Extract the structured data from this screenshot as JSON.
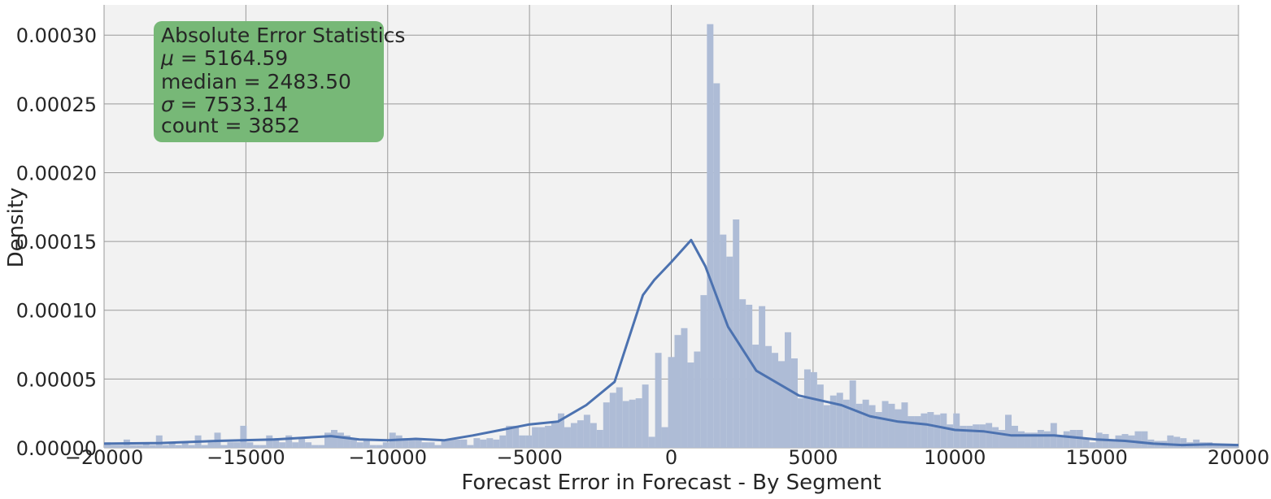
{
  "chart_data": {
    "type": "bar",
    "xlabel": "Forecast Error in Forecast - By Segment",
    "ylabel": "Density",
    "xlim": [
      -20000,
      20000
    ],
    "ylim": [
      0,
      0.000322
    ],
    "grid": true,
    "x_ticks": [
      -20000,
      -15000,
      -10000,
      -5000,
      0,
      5000,
      10000,
      15000,
      20000
    ],
    "x_tick_labels": [
      "−20000",
      "−15000",
      "−10000",
      "−5000",
      "0",
      "5000",
      "10000",
      "15000",
      "20000"
    ],
    "y_ticks": [
      0,
      5e-05,
      0.0001,
      0.00015,
      0.0002,
      0.00025,
      0.0003
    ],
    "y_tick_labels": [
      "0.00000",
      "0.00005",
      "0.00010",
      "0.00015",
      "0.00020",
      "0.00025",
      "0.00030"
    ],
    "colors": {
      "bars": "#aebcd6",
      "kde": "#4c72b0",
      "plot_bg": "#f2f2f2",
      "grid": "#9a9a9a",
      "stats_box": "#77b877"
    },
    "histogram": {
      "bin_width": 228.6,
      "bin_starts": [
        -20000,
        -19771,
        -19543,
        -19314,
        -19086,
        -18857,
        -18629,
        -18400,
        -18171,
        -17943,
        -17714,
        -17486,
        -17257,
        -17029,
        -16800,
        -16571,
        -16343,
        -16114,
        -15886,
        -15657,
        -15429,
        -15200,
        -14971,
        -14743,
        -14514,
        -14286,
        -14057,
        -13829,
        -13600,
        -13371,
        -13143,
        -12914,
        -12686,
        -12457,
        -12229,
        -12000,
        -11771,
        -11543,
        -11314,
        -11086,
        -10857,
        -10629,
        -10400,
        -10171,
        -9943,
        -9714,
        -9486,
        -9257,
        -9029,
        -8800,
        -8571,
        -8343,
        -8114,
        -7886,
        -7657,
        -7429,
        -7200,
        -6971,
        -6743,
        -6514,
        -6286,
        -6057,
        -5829,
        -5600,
        -5371,
        -5143,
        -4914,
        -4686,
        -4457,
        -4229,
        -4000,
        -3771,
        -3543,
        -3314,
        -3086,
        -2857,
        -2629,
        -2400,
        -2171,
        -1943,
        -1714,
        -1486,
        -1257,
        -1029,
        -800,
        -571,
        -343,
        -114,
        114,
        343,
        571,
        800,
        1029,
        1257,
        1486,
        1714,
        1943,
        2171,
        2400,
        2629,
        2857,
        3086,
        3314,
        3543,
        3771,
        4000,
        4229,
        4457,
        4686,
        4914,
        5143,
        5371,
        5600,
        5829,
        6057,
        6286,
        6514,
        6743,
        6971,
        7200,
        7429,
        7657,
        7886,
        8114,
        8343,
        8571,
        8800,
        9029,
        9257,
        9486,
        9714,
        9943,
        10171,
        10400,
        10629,
        10857,
        11086,
        11314,
        11543,
        11771,
        12000,
        12229,
        12457,
        12686,
        12914,
        13143,
        13371,
        13600,
        13829,
        14057,
        14286,
        14514,
        14743,
        14971,
        15200,
        15429,
        15657,
        15886,
        16114,
        16343,
        16571,
        16800,
        17029,
        17257,
        17486,
        17714,
        17943,
        18171,
        18400,
        18629,
        18857,
        19086,
        19314,
        19543,
        19771
      ],
      "values": [
        4e-06,
        2e-06,
        2e-06,
        6e-06,
        2e-06,
        2e-06,
        4e-06,
        2e-06,
        9e-06,
        2e-06,
        4e-06,
        2e-06,
        4e-06,
        2e-06,
        9e-06,
        2e-06,
        4e-06,
        1.1e-05,
        2e-06,
        4e-06,
        4e-06,
        1.6e-05,
        4e-06,
        2e-06,
        2e-06,
        9e-06,
        7e-06,
        4e-06,
        9e-06,
        4e-06,
        7e-06,
        4e-06,
        2e-06,
        2e-06,
        1.1e-05,
        1.3e-05,
        1.1e-05,
        9e-06,
        7e-06,
        4e-06,
        6e-06,
        2e-06,
        2e-06,
        4e-06,
        1.1e-05,
        9e-06,
        7e-06,
        6e-06,
        7e-06,
        4e-06,
        4e-06,
        2e-06,
        6e-06,
        6e-06,
        6e-06,
        6e-06,
        2e-06,
        7e-06,
        6e-06,
        7e-06,
        6e-06,
        9e-06,
        1.6e-05,
        1.6e-05,
        9e-06,
        9e-06,
        1.5e-05,
        1.5e-05,
        1.6e-05,
        1.8e-05,
        2.5e-05,
        1.5e-05,
        1.8e-05,
        2e-05,
        2.4e-05,
        1.8e-05,
        1.3e-05,
        3.3e-05,
        4e-05,
        4.4e-05,
        3.4e-05,
        3.5e-05,
        3.6e-05,
        4.6e-05,
        8e-06,
        6.9e-05,
        1.5e-05,
        6.6e-05,
        8.2e-05,
        8.7e-05,
        6.2e-05,
        7e-05,
        0.000111,
        0.000308,
        0.000265,
        0.000155,
        0.000139,
        0.000166,
        0.000108,
        0.000104,
        7.5e-05,
        0.000103,
        7.4e-05,
        6.9e-05,
        6.3e-05,
        8.4e-05,
        6.5e-05,
        3.6e-05,
        5.7e-05,
        5.5e-05,
        4.6e-05,
        3.1e-05,
        3.8e-05,
        4e-05,
        3.5e-05,
        4.9e-05,
        3.2e-05,
        3.5e-05,
        3.1e-05,
        2.6e-05,
        3.4e-05,
        3.2e-05,
        2.8e-05,
        3.3e-05,
        2.3e-05,
        2.3e-05,
        2.5e-05,
        2.6e-05,
        2.4e-05,
        2.5e-05,
        1.7e-05,
        2.5e-05,
        1.6e-05,
        1.6e-05,
        1.7e-05,
        1.7e-05,
        1.8e-05,
        1.5e-05,
        1.3e-05,
        2.4e-05,
        1.6e-05,
        1.2e-05,
        1.1e-05,
        1.1e-05,
        1.3e-05,
        1.2e-05,
        1.8e-05,
        9e-06,
        1.2e-05,
        1.3e-05,
        1.3e-05,
        7e-06,
        4e-06,
        1.1e-05,
        1e-05,
        6e-06,
        9e-06,
        1e-05,
        9e-06,
        1.2e-05,
        1.2e-05,
        6e-06,
        5e-06,
        5e-06,
        9e-06,
        8e-06,
        7e-06,
        4e-06,
        6e-06,
        4e-06,
        4e-06,
        3e-06,
        3e-06,
        3e-06,
        2e-06,
        3e-06,
        2e-06,
        2e-06,
        4e-06,
        4e-06,
        3e-06,
        2e-06
      ]
    },
    "kde": {
      "x": [
        -20000,
        -18000,
        -16000,
        -14000,
        -12000,
        -11000,
        -10000,
        -9000,
        -8000,
        -7000,
        -6000,
        -5000,
        -4000,
        -3000,
        -2000,
        -1000,
        -600,
        0,
        700,
        1200,
        2000,
        3000,
        4500,
        6000,
        7000,
        8000,
        9000,
        10000,
        11000,
        12000,
        13500,
        15000,
        16000,
        17000,
        18000,
        19000,
        20000
      ],
      "y": [
        3e-06,
        3.5e-06,
        5e-06,
        6e-06,
        8.5e-06,
        6e-06,
        5.5e-06,
        6.5e-06,
        5.5e-06,
        9e-06,
        1.3e-05,
        1.7e-05,
        1.9e-05,
        3.1e-05,
        4.8e-05,
        0.000111,
        0.000122,
        0.000135,
        0.000151,
        0.000132,
        8.8e-05,
        5.6e-05,
        3.8e-05,
        3.1e-05,
        2.3e-05,
        1.9e-05,
        1.7e-05,
        1.3e-05,
        1.2e-05,
        9e-06,
        9e-06,
        6e-06,
        5e-06,
        3e-06,
        2e-06,
        2.5e-06,
        2e-06
      ]
    },
    "stats_box": {
      "title": "Absolute Error Statistics",
      "lines": [
        {
          "symbol": "μ",
          "rest": " = 5164.59"
        },
        {
          "symbol": "",
          "rest": "median = 2483.50"
        },
        {
          "symbol": "σ",
          "rest": " = 7533.14"
        },
        {
          "symbol": "",
          "rest": "count = 3852"
        }
      ]
    }
  }
}
